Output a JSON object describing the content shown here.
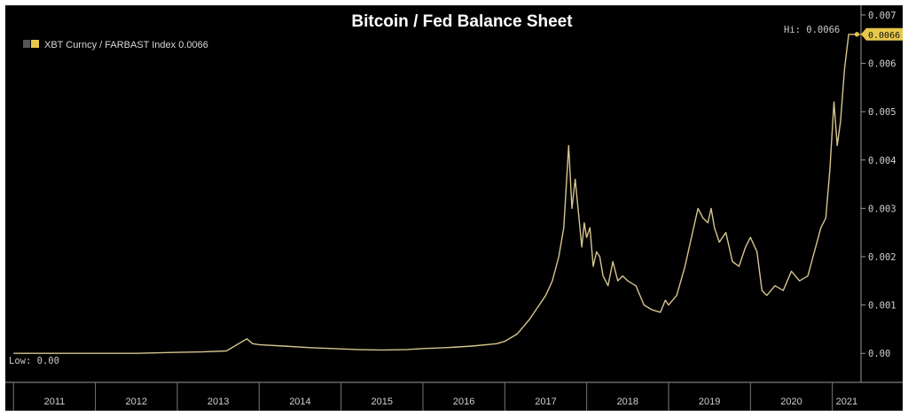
{
  "chart_data": {
    "type": "line",
    "title": "Bitcoin / Fed Balance Sheet",
    "legend": {
      "position": "top-left",
      "entries": [
        {
          "label": "XBT Curncy / FARBAST Index 0.0066",
          "color": "#cdb86c"
        }
      ]
    },
    "annotations": {
      "high": "Hi: 0.0066",
      "low": "Low: 0.00",
      "last_value": "0.0066"
    },
    "colors": {
      "line": "#d6c58e",
      "tag": "#e8c84a",
      "axis": "#9a9a9a",
      "background": "#000000"
    },
    "ylim": [
      -0.0006,
      0.0072
    ],
    "yticks": [
      "0.00",
      "0.001",
      "0.002",
      "0.003",
      "0.004",
      "0.005",
      "0.006",
      "0.007"
    ],
    "ytick_values": [
      0,
      0.001,
      0.002,
      0.003,
      0.004,
      0.005,
      0.006,
      0.007
    ],
    "xlim": [
      2010.9,
      2021.35
    ],
    "xticks": [
      "2011",
      "2012",
      "2013",
      "2014",
      "2015",
      "2016",
      "2017",
      "2018",
      "2019",
      "2020",
      "2021"
    ],
    "xtick_values": [
      2011,
      2012,
      2013,
      2014,
      2015,
      2016,
      2017,
      2018,
      2019,
      2020,
      2021
    ],
    "grid": false,
    "series": [
      {
        "x": [
          2011.0,
          2011.5,
          2012.0,
          2012.5,
          2013.0,
          2013.3,
          2013.6,
          2013.85,
          2013.92,
          2014.0,
          2014.3,
          2014.6,
          2014.9,
          2015.2,
          2015.5,
          2015.8,
          2016.0,
          2016.3,
          2016.6,
          2016.9,
          2017.0,
          2017.15,
          2017.3,
          2017.42,
          2017.5,
          2017.58,
          2017.66,
          2017.72,
          2017.78,
          2017.82,
          2017.86,
          2017.9,
          2017.94,
          2017.97,
          2018.0,
          2018.04,
          2018.08,
          2018.12,
          2018.16,
          2018.2,
          2018.26,
          2018.32,
          2018.38,
          2018.44,
          2018.5,
          2018.6,
          2018.7,
          2018.8,
          2018.9,
          2018.96,
          2019.0,
          2019.1,
          2019.2,
          2019.28,
          2019.36,
          2019.42,
          2019.48,
          2019.52,
          2019.56,
          2019.62,
          2019.7,
          2019.78,
          2019.86,
          2019.94,
          2020.0,
          2020.08,
          2020.14,
          2020.2,
          2020.3,
          2020.4,
          2020.5,
          2020.6,
          2020.7,
          2020.78,
          2020.86,
          2020.92,
          2020.97,
          2021.02,
          2021.06,
          2021.1,
          2021.15,
          2021.2,
          2021.25,
          2021.3
        ],
        "y": [
          0.0,
          0.0,
          0.0,
          0.0,
          2e-05,
          3e-05,
          5e-05,
          0.0003,
          0.0002,
          0.00018,
          0.00015,
          0.00012,
          0.0001,
          8e-05,
          7e-05,
          8e-05,
          0.0001,
          0.00012,
          0.00015,
          0.0002,
          0.00025,
          0.0004,
          0.0007,
          0.001,
          0.0012,
          0.0015,
          0.002,
          0.0026,
          0.0043,
          0.003,
          0.0036,
          0.0029,
          0.0022,
          0.0027,
          0.0024,
          0.0026,
          0.0018,
          0.0021,
          0.002,
          0.0016,
          0.0014,
          0.0019,
          0.0015,
          0.0016,
          0.0015,
          0.0014,
          0.001,
          0.0009,
          0.00085,
          0.0011,
          0.001,
          0.0012,
          0.0018,
          0.0024,
          0.003,
          0.0028,
          0.0027,
          0.003,
          0.0026,
          0.0023,
          0.0025,
          0.0019,
          0.0018,
          0.0022,
          0.0024,
          0.0021,
          0.0013,
          0.0012,
          0.0014,
          0.0013,
          0.0017,
          0.0015,
          0.0016,
          0.0021,
          0.0026,
          0.0028,
          0.0038,
          0.0052,
          0.0043,
          0.0048,
          0.0059,
          0.0066,
          0.0066,
          0.0066
        ]
      }
    ]
  }
}
